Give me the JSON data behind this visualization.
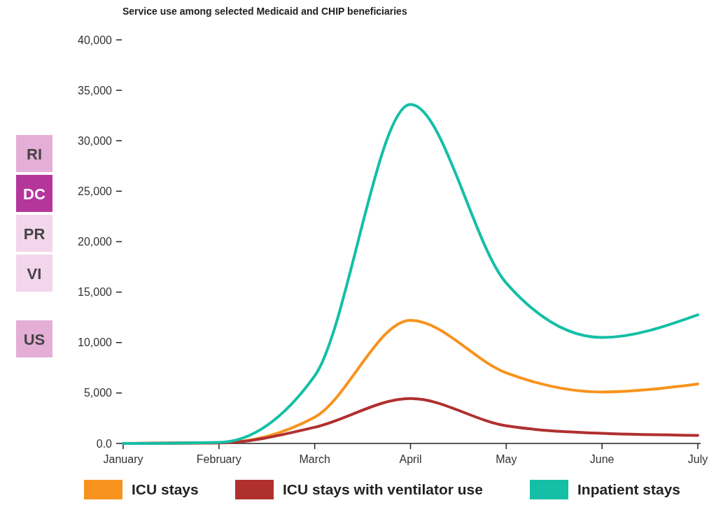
{
  "chart_data": {
    "type": "line",
    "title": "Service use among selected Medicaid and CHIP beneficiaries",
    "categories": [
      "January",
      "February",
      "March",
      "April",
      "May",
      "June",
      "July"
    ],
    "series": [
      {
        "name": "ICU stays",
        "color": "#f7931e",
        "values": [
          0,
          50,
          2600,
          12200,
          7000,
          5100,
          5900
        ]
      },
      {
        "name": "ICU stays with ventilator use",
        "color": "#b03030",
        "values": [
          0,
          50,
          1600,
          4450,
          1750,
          1000,
          800
        ]
      },
      {
        "name": "Inpatient stays",
        "color": "#14bfa6",
        "values": [
          0,
          100,
          6700,
          33600,
          15900,
          10500,
          12750
        ]
      }
    ],
    "ylim": [
      0,
      40000
    ],
    "yticks": [
      {
        "value": 0,
        "label": "0.0"
      },
      {
        "value": 5000,
        "label": "5,000"
      },
      {
        "value": 10000,
        "label": "10,000"
      },
      {
        "value": 15000,
        "label": "15,000"
      },
      {
        "value": 20000,
        "label": "20,000"
      },
      {
        "value": 25000,
        "label": "25,000"
      },
      {
        "value": 30000,
        "label": "30,000"
      },
      {
        "value": 35000,
        "label": "35,000"
      },
      {
        "value": 40000,
        "label": "40,000"
      }
    ],
    "annotations": [
      "RI",
      "DC",
      "PR",
      "VI",
      "US"
    ],
    "legend": "bottom",
    "grid": false,
    "marker": "none",
    "line_style": "solid"
  }
}
